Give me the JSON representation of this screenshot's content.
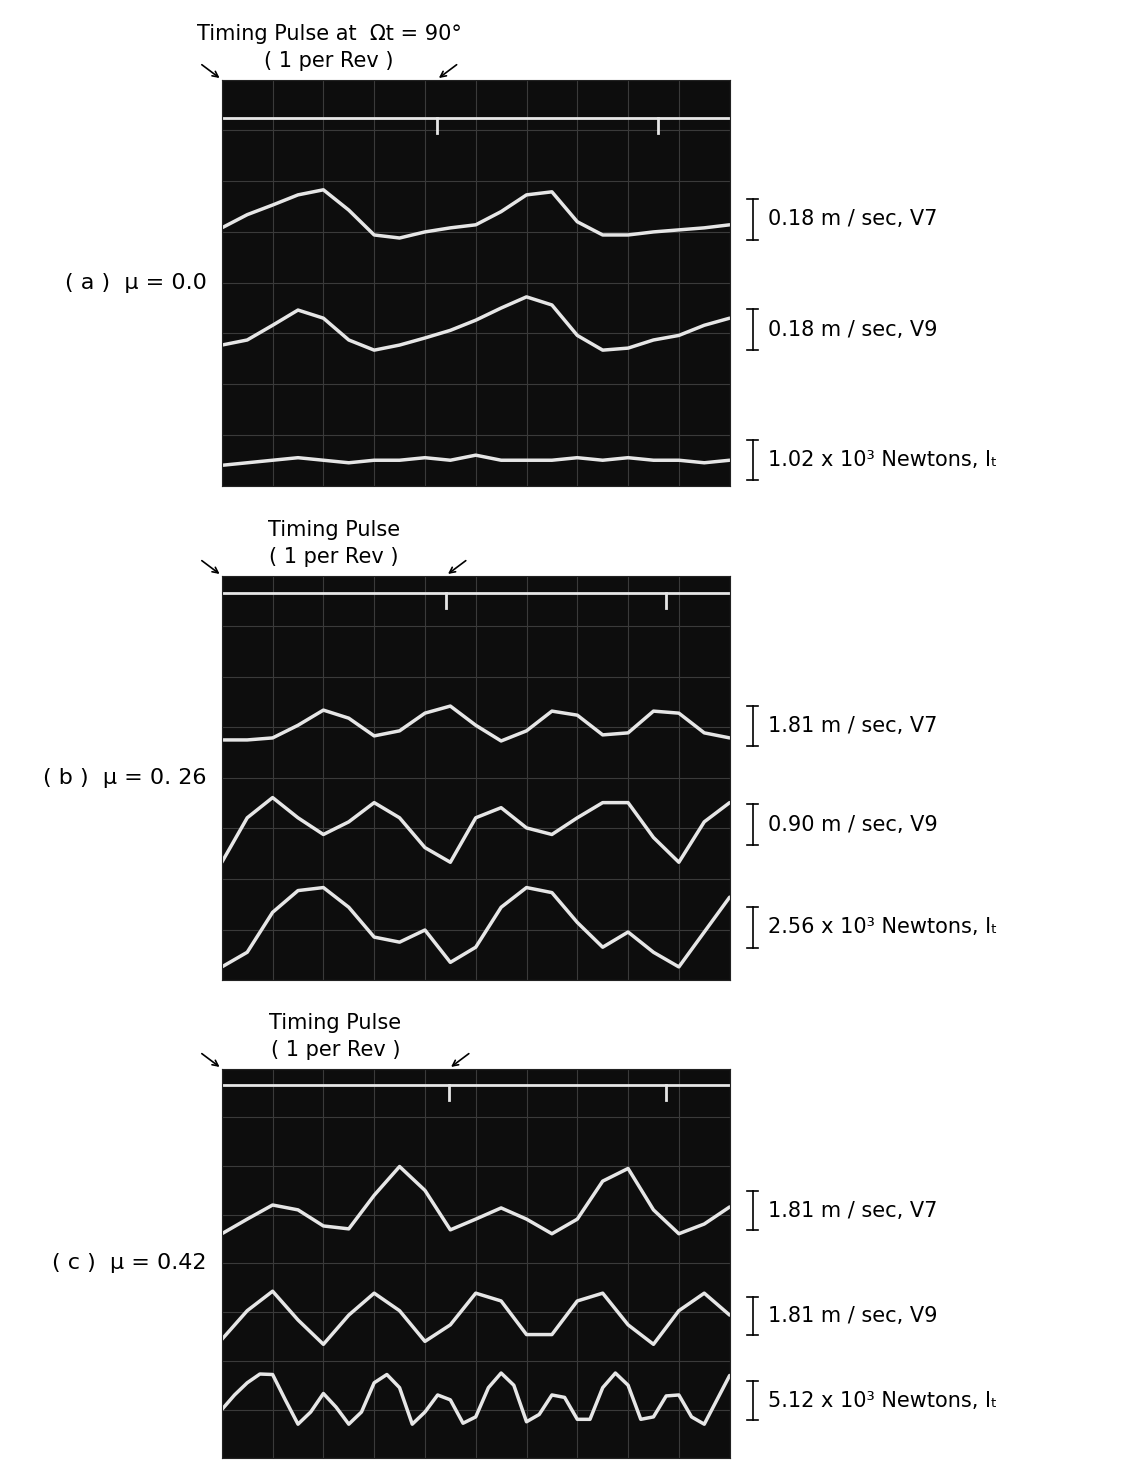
{
  "chart_data": [
    {
      "type": "line",
      "title": "( a )  μ = 0.0",
      "annotations": [
        "Timing Pulse at  Ωt = 90°",
        "( 1 per Rev )"
      ],
      "xlim": [
        0,
        10
      ],
      "ylim": [
        0,
        8
      ],
      "xticks": [
        0,
        1,
        2,
        3,
        4,
        5,
        6,
        7,
        8,
        9,
        10
      ],
      "yticks": [
        0,
        1,
        2,
        3,
        4,
        5,
        6,
        7,
        8
      ],
      "grid": true,
      "tick_labels": false,
      "x": [
        0,
        0.5,
        1,
        1.5,
        2,
        2.5,
        3,
        3.5,
        4,
        4.5,
        5,
        5.5,
        6,
        6.5,
        7,
        7.5,
        8,
        8.5,
        9,
        9.5,
        10
      ],
      "timing_pulse": {
        "level": 7.25,
        "pulses": [
          4.23,
          8.58
        ],
        "color": "#e6e6e6"
      },
      "series": [
        {
          "name": "0.18 m / sec, V7",
          "color": "#e6e6e6",
          "scale_bar": 0.8,
          "values": [
            5.08,
            5.34,
            5.53,
            5.73,
            5.83,
            5.43,
            4.94,
            4.88,
            5.0,
            5.08,
            5.14,
            5.4,
            5.73,
            5.79,
            5.2,
            4.94,
            4.94,
            5.0,
            5.04,
            5.08,
            5.14
          ]
        },
        {
          "name": "0.18 m / sec, V9",
          "color": "#e6e6e6",
          "scale_bar": 0.8,
          "values": [
            2.77,
            2.87,
            3.16,
            3.46,
            3.3,
            2.87,
            2.67,
            2.77,
            2.91,
            3.06,
            3.26,
            3.5,
            3.72,
            3.56,
            2.96,
            2.67,
            2.71,
            2.87,
            2.96,
            3.16,
            3.3
          ]
        },
        {
          "name": "1.02 x 10³ Newtons, Iₜ",
          "color": "#e6e6e6",
          "scale_bar": 0.8,
          "values": [
            0.4,
            0.45,
            0.5,
            0.55,
            0.5,
            0.45,
            0.5,
            0.5,
            0.55,
            0.5,
            0.6,
            0.5,
            0.5,
            0.5,
            0.55,
            0.5,
            0.55,
            0.5,
            0.5,
            0.45,
            0.5
          ]
        }
      ]
    },
    {
      "type": "line",
      "title": "( b )  μ = 0. 26",
      "annotations": [
        "Timing Pulse",
        "( 1 per Rev )"
      ],
      "xlim": [
        0,
        10
      ],
      "ylim": [
        0,
        8
      ],
      "xticks": [
        0,
        1,
        2,
        3,
        4,
        5,
        6,
        7,
        8,
        9,
        10
      ],
      "yticks": [
        0,
        1,
        2,
        3,
        4,
        5,
        6,
        7,
        8
      ],
      "grid": true,
      "tick_labels": false,
      "x": [
        0,
        0.5,
        1,
        1.5,
        2,
        2.5,
        3,
        3.5,
        4,
        4.5,
        5,
        5.5,
        6,
        6.5,
        7,
        7.5,
        8,
        8.5,
        9,
        9.5,
        10
      ],
      "timing_pulse": {
        "level": 7.65,
        "pulses": [
          4.41,
          8.75
        ],
        "color": "#e6e6e6"
      },
      "series": [
        {
          "name": "1.81 m / sec, V7",
          "color": "#e6e6e6",
          "scale_bar": 0.8,
          "values": [
            4.75,
            4.75,
            4.79,
            5.04,
            5.34,
            5.18,
            4.83,
            4.93,
            5.28,
            5.42,
            5.04,
            4.73,
            4.93,
            5.32,
            5.24,
            4.85,
            4.89,
            5.32,
            5.28,
            4.89,
            4.79
          ]
        },
        {
          "name": "0.90 m / sec, V9",
          "color": "#e6e6e6",
          "scale_bar": 0.8,
          "values": [
            2.33,
            3.21,
            3.61,
            3.21,
            2.88,
            3.13,
            3.51,
            3.21,
            2.62,
            2.33,
            3.21,
            3.41,
            3.01,
            2.88,
            3.21,
            3.51,
            3.51,
            2.82,
            2.33,
            3.13,
            3.51
          ]
        },
        {
          "name": "2.56 x 10³ Newtons, Iₜ",
          "color": "#e6e6e6",
          "scale_bar": 0.8,
          "values": [
            0.26,
            0.55,
            1.34,
            1.77,
            1.83,
            1.44,
            0.85,
            0.75,
            0.99,
            0.35,
            0.65,
            1.44,
            1.83,
            1.73,
            1.14,
            0.65,
            0.95,
            0.55,
            0.26,
            0.95,
            1.64
          ]
        }
      ]
    },
    {
      "type": "line",
      "title": "( c )  μ = 0.42",
      "annotations": [
        "Timing Pulse",
        "( 1 per Rev )"
      ],
      "xlim": [
        0,
        10
      ],
      "ylim": [
        0,
        8
      ],
      "xticks": [
        0,
        1,
        2,
        3,
        4,
        5,
        6,
        7,
        8,
        9,
        10
      ],
      "yticks": [
        0,
        1,
        2,
        3,
        4,
        5,
        6,
        7,
        8
      ],
      "grid": true,
      "tick_labels": false,
      "x": [
        0,
        0.5,
        1,
        1.5,
        2,
        2.5,
        3,
        3.5,
        4,
        4.5,
        5,
        5.5,
        6,
        6.5,
        7,
        7.5,
        8,
        8.5,
        9,
        9.5,
        10
      ],
      "timing_pulse": {
        "level": 7.66,
        "pulses": [
          4.47,
          8.75
        ],
        "color": "#e6e6e6"
      },
      "series": [
        {
          "name": "1.81 m / sec, V7",
          "color": "#e6e6e6",
          "scale_bar": 0.8,
          "values": [
            4.61,
            4.91,
            5.2,
            5.1,
            4.77,
            4.71,
            5.4,
            5.99,
            5.5,
            4.69,
            4.91,
            5.14,
            4.91,
            4.61,
            4.91,
            5.69,
            5.95,
            5.1,
            4.61,
            4.81,
            5.16
          ]
        },
        {
          "name": "1.81 m / sec, V9",
          "color": "#e6e6e6",
          "scale_bar": 0.8,
          "values": [
            2.44,
            3.03,
            3.43,
            2.84,
            2.34,
            2.94,
            3.39,
            3.03,
            2.4,
            2.74,
            3.39,
            3.23,
            2.54,
            2.54,
            3.23,
            3.39,
            2.74,
            2.34,
            3.03,
            3.39,
            2.94
          ]
        },
        {
          "name": "5.12 x 10³ Newtons, Iₜ",
          "color": "#e6e6e6",
          "scale_bar": 0.8,
          "x": [
            0,
            0.25,
            0.5,
            0.75,
            1,
            1.25,
            1.5,
            1.75,
            2,
            2.25,
            2.5,
            2.75,
            3,
            3.25,
            3.5,
            3.75,
            4,
            4.25,
            4.5,
            4.75,
            5,
            5.25,
            5.5,
            5.75,
            6,
            6.25,
            6.5,
            6.75,
            7,
            7.25,
            7.5,
            7.75,
            8,
            8.25,
            8.5,
            8.75,
            9,
            9.25,
            9.5,
            9.75,
            10
          ],
          "values": [
            1.0,
            1.3,
            1.55,
            1.73,
            1.72,
            1.2,
            0.7,
            0.95,
            1.33,
            1.05,
            0.7,
            0.95,
            1.55,
            1.72,
            1.45,
            0.7,
            0.95,
            1.3,
            1.2,
            0.72,
            0.85,
            1.45,
            1.75,
            1.5,
            0.75,
            0.9,
            1.3,
            1.25,
            0.8,
            0.8,
            1.45,
            1.75,
            1.5,
            0.8,
            0.85,
            1.28,
            1.3,
            0.85,
            0.7,
            1.2,
            1.7
          ]
        }
      ]
    }
  ]
}
